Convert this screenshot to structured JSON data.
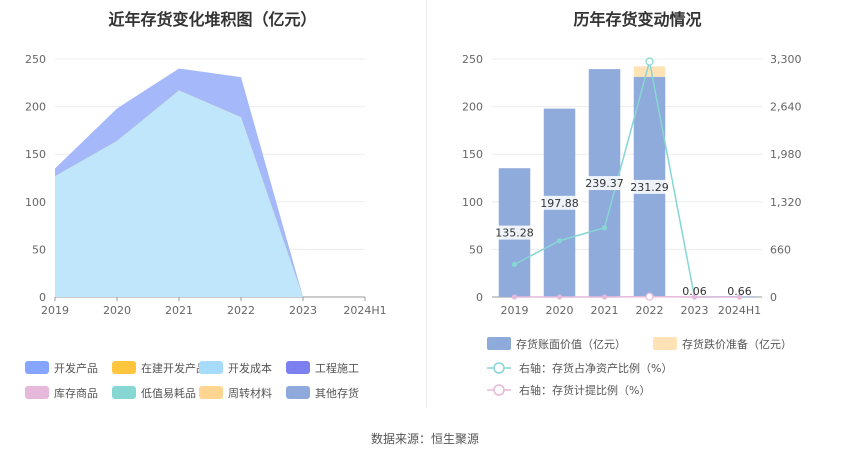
{
  "left_title": "近年存货变化堆积图（亿元）",
  "right_title": "历年存货变动情况",
  "source": "数据来源：恒生聚源",
  "chart_data": [
    {
      "type": "area",
      "title": "近年存货变化堆积图（亿元）",
      "categories": [
        "2019",
        "2020",
        "2021",
        "2022",
        "2023",
        "2024H1"
      ],
      "ylim": [
        0,
        250
      ],
      "yticks": [
        0,
        50,
        100,
        150,
        200,
        250
      ],
      "stacked": true,
      "grid": true,
      "series": [
        {
          "name": "开发产品",
          "color": "#a4b8fa",
          "values": [
            8,
            34,
            23,
            42,
            0,
            0
          ]
        },
        {
          "name": "在建开发产品",
          "color": "#ffc53d",
          "values": [
            0,
            0,
            0,
            0,
            0,
            0
          ]
        },
        {
          "name": "开发成本",
          "color": "#bfe6fb",
          "values": [
            127,
            164,
            217,
            189,
            0,
            0
          ]
        },
        {
          "name": "工程施工",
          "color": "#7b7ff0",
          "values": [
            0,
            0,
            0,
            0,
            0,
            0
          ]
        },
        {
          "name": "库存商品",
          "color": "#e6b9dc",
          "values": [
            0,
            0,
            0,
            0,
            0,
            0
          ]
        },
        {
          "name": "低值易耗品",
          "color": "#86d6d3",
          "values": [
            0,
            0,
            0,
            0,
            0,
            0
          ]
        },
        {
          "name": "周转材料",
          "color": "#ffd591",
          "values": [
            0,
            0,
            0,
            0,
            0,
            0
          ]
        },
        {
          "name": "其他存货",
          "color": "#8fa9dc",
          "values": [
            0,
            0,
            0,
            0,
            0,
            0
          ]
        }
      ],
      "legend": [
        {
          "name": "开发产品",
          "color": "#85a5ff"
        },
        {
          "name": "在建开发产品",
          "color": "#ffc53d"
        },
        {
          "name": "开发成本",
          "color": "#a6dcfa"
        },
        {
          "name": "工程施工",
          "color": "#7b7ff0"
        },
        {
          "name": "库存商品",
          "color": "#e6b9dc"
        },
        {
          "name": "低值易耗品",
          "color": "#86d6d3"
        },
        {
          "name": "周转材料",
          "color": "#ffd591"
        },
        {
          "name": "其他存货",
          "color": "#8fa9dc"
        }
      ],
      "legend_position": "bottom"
    },
    {
      "type": "bar",
      "title": "历年存货变动情况",
      "categories": [
        "2019",
        "2020",
        "2021",
        "2022",
        "2023",
        "2024H1"
      ],
      "ylim": [
        0,
        250
      ],
      "yticks": [
        0,
        50,
        100,
        150,
        200,
        250
      ],
      "y2lim": [
        0,
        3300
      ],
      "y2ticks": [
        "0",
        "660",
        "1,320",
        "1,980",
        "2,640",
        "3,300"
      ],
      "grid": true,
      "bars": [
        {
          "name": "存货账面价值（亿元）",
          "color": "#8fabdb",
          "values": [
            135.28,
            197.88,
            239.37,
            231.29,
            0.06,
            0.66
          ],
          "labels": [
            "135.28",
            "197.88",
            "239.37",
            "231.29",
            "0.06",
            "0.66"
          ]
        },
        {
          "name": "存货跌价准备（亿元）",
          "color": "#ffe2b5",
          "values": [
            0,
            0,
            0,
            11,
            0,
            0
          ]
        }
      ],
      "lines": [
        {
          "name": "右轴：存货占净资产比例（%）",
          "color": "#86d6d3",
          "axis": "right",
          "values": [
            452,
            780,
            960,
            3265,
            0,
            5
          ]
        },
        {
          "name": "右轴：存货计提比例（%）",
          "color": "#e6b9dc",
          "axis": "right",
          "values": [
            0,
            0,
            0,
            5,
            0,
            0
          ]
        }
      ],
      "legend_position": "bottom"
    }
  ]
}
